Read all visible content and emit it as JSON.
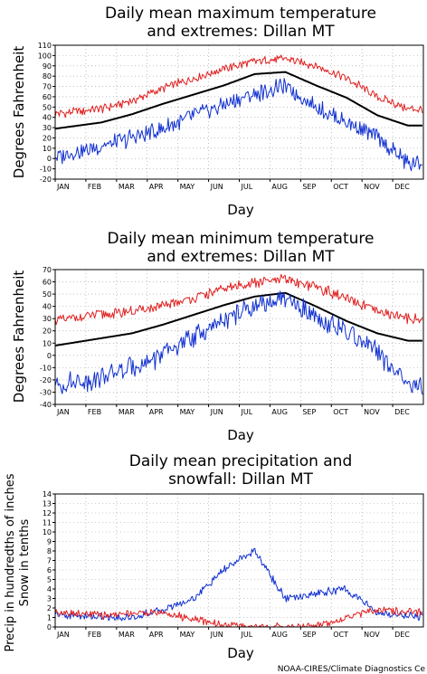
{
  "credit": "NOAA-CIRES/Climate Diagnostics Ce",
  "colors": {
    "mean": "#000000",
    "max_extreme": "#e02020",
    "min_extreme": "#1030d0",
    "precip": "#1030d0",
    "snow": "#e02020"
  },
  "chart_data": [
    {
      "type": "line",
      "title": [
        "Daily mean maximum temperature",
        "and extremes: Dillan MT"
      ],
      "xlabel": "Day",
      "ylabel": "Degrees Fahrenheit",
      "ylim": [
        -20,
        110
      ],
      "yticks": [
        -20,
        -10,
        0,
        10,
        20,
        30,
        40,
        50,
        60,
        70,
        80,
        90,
        100,
        110
      ],
      "xticks": [
        "JAN",
        "FEB",
        "MAR",
        "APR",
        "MAY",
        "JUN",
        "JUL",
        "AUG",
        "SEP",
        "OCT",
        "NOV",
        "DEC"
      ],
      "grid": true,
      "x_month_mid": [
        1,
        2,
        3,
        4,
        5,
        6,
        7,
        8,
        9,
        10,
        11,
        12
      ],
      "series": [
        {
          "role": "max_extreme",
          "values": [
            45,
            48,
            56,
            68,
            78,
            87,
            94,
            97,
            90,
            78,
            60,
            48
          ]
        },
        {
          "role": "mean",
          "values": [
            31,
            35,
            43,
            53,
            62,
            71,
            82,
            84,
            71,
            59,
            42,
            32
          ]
        },
        {
          "role": "min_extreme",
          "values": [
            5,
            12,
            20,
            28,
            42,
            52,
            62,
            70,
            50,
            35,
            20,
            -5
          ]
        }
      ]
    },
    {
      "type": "line",
      "title": [
        "Daily mean minimum temperature",
        "and extremes: Dillan MT"
      ],
      "xlabel": "Day",
      "ylabel": "Degrees Fahrenheit",
      "ylim": [
        -40,
        70
      ],
      "yticks": [
        -40,
        -30,
        -20,
        -10,
        0,
        10,
        20,
        30,
        40,
        50,
        60,
        70
      ],
      "xticks": [
        "JAN",
        "FEB",
        "MAR",
        "APR",
        "MAY",
        "JUN",
        "JUL",
        "AUG",
        "SEP",
        "OCT",
        "NOV",
        "DEC"
      ],
      "grid": true,
      "x_month_mid": [
        1,
        2,
        3,
        4,
        5,
        6,
        7,
        8,
        9,
        10,
        11,
        12
      ],
      "series": [
        {
          "role": "max_extreme",
          "values": [
            30,
            33,
            36,
            40,
            47,
            54,
            59,
            62,
            56,
            46,
            36,
            30
          ]
        },
        {
          "role": "mean",
          "values": [
            10,
            14,
            18,
            25,
            33,
            41,
            48,
            51,
            40,
            28,
            18,
            12
          ]
        },
        {
          "role": "min_extreme",
          "values": [
            -22,
            -18,
            -10,
            0,
            15,
            28,
            40,
            45,
            32,
            18,
            2,
            -25
          ]
        }
      ]
    },
    {
      "type": "line",
      "title": [
        "Daily mean precipitation and",
        "snowfall: Dillan MT"
      ],
      "xlabel": "Day",
      "ylabel": [
        "Precip in hundredths of inches",
        "Snow in tenths"
      ],
      "ylim": [
        0,
        14
      ],
      "yticks": [
        0,
        1,
        2,
        3,
        4,
        5,
        6,
        7,
        8,
        9,
        10,
        11,
        12,
        13,
        14
      ],
      "xticks": [
        "JAN",
        "FEB",
        "MAR",
        "APR",
        "MAY",
        "JUN",
        "JUL",
        "AUG",
        "SEP",
        "OCT",
        "NOV",
        "DEC"
      ],
      "grid": true,
      "x_month_mid": [
        1,
        2,
        3,
        4,
        5,
        6,
        7,
        8,
        9,
        10,
        11,
        12
      ],
      "series": [
        {
          "role": "precip",
          "values": [
            1.2,
            1.0,
            1.0,
            1.8,
            3.0,
            6.0,
            8.0,
            3.0,
            3.5,
            4.0,
            1.5,
            1.2
          ]
        },
        {
          "role": "snow",
          "values": [
            1.5,
            1.2,
            1.5,
            1.5,
            0.8,
            0.2,
            0.0,
            0.0,
            0.1,
            1.0,
            1.8,
            1.5
          ]
        }
      ]
    }
  ]
}
